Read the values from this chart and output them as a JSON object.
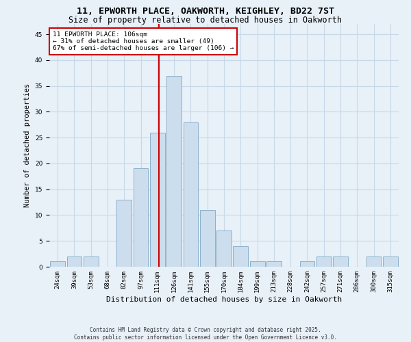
{
  "title1": "11, EPWORTH PLACE, OAKWORTH, KEIGHLEY, BD22 7ST",
  "title2": "Size of property relative to detached houses in Oakworth",
  "xlabel": "Distribution of detached houses by size in Oakworth",
  "ylabel": "Number of detached properties",
  "categories": [
    "24sqm",
    "39sqm",
    "53sqm",
    "68sqm",
    "82sqm",
    "97sqm",
    "111sqm",
    "126sqm",
    "141sqm",
    "155sqm",
    "170sqm",
    "184sqm",
    "199sqm",
    "213sqm",
    "228sqm",
    "242sqm",
    "257sqm",
    "271sqm",
    "286sqm",
    "300sqm",
    "315sqm"
  ],
  "values": [
    1,
    2,
    2,
    0,
    13,
    19,
    26,
    37,
    28,
    11,
    7,
    4,
    1,
    1,
    0,
    1,
    2,
    2,
    0,
    2,
    2
  ],
  "bar_color": "#ccdded",
  "bar_edge_color": "#8ab0cc",
  "bar_edge_width": 0.7,
  "grid_color": "#c8d8e8",
  "bg_color": "#e8f0f8",
  "red_line_x": 6.08,
  "annotation_text": "11 EPWORTH PLACE: 106sqm\n← 31% of detached houses are smaller (49)\n67% of semi-detached houses are larger (106) →",
  "annotation_box_color": "#ffffff",
  "annotation_box_edge": "#cc0000",
  "red_line_color": "#cc0000",
  "footnote": "Contains HM Land Registry data © Crown copyright and database right 2025.\nContains public sector information licensed under the Open Government Licence v3.0.",
  "ylim": [
    0,
    47
  ],
  "title_fontsize": 9.5,
  "subtitle_fontsize": 8.5,
  "ylabel_fontsize": 7.5,
  "xlabel_fontsize": 8,
  "tick_fontsize": 6.5,
  "annot_fontsize": 6.8,
  "footnote_fontsize": 5.5
}
